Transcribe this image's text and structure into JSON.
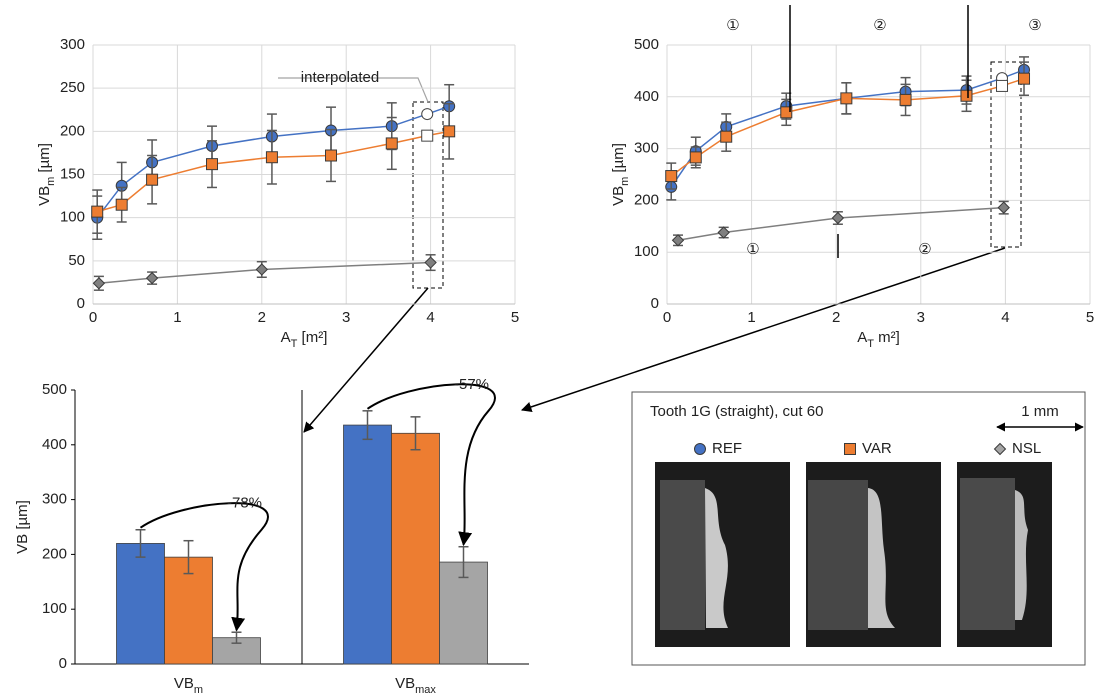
{
  "chart_data": [
    {
      "type": "line",
      "xlabel": {
        "main": "A",
        "sub": "T",
        "rest": " [m²]"
      },
      "ylabel": {
        "main": "VB",
        "sub": "m",
        "rest": " [µm]"
      },
      "xlim": [
        0,
        5
      ],
      "xticks": [
        0,
        1,
        2,
        3,
        4,
        5
      ],
      "ylim": [
        0,
        300
      ],
      "yticks": [
        0,
        50,
        100,
        150,
        200,
        250,
        300
      ],
      "grid": true,
      "annotation": "interpolated",
      "series": [
        {
          "color": "#4472c4",
          "marker": "circle",
          "open_points": [
            7
          ],
          "x": [
            0.05,
            0.34,
            0.7,
            1.41,
            2.12,
            2.82,
            3.54,
            3.96,
            4.22
          ],
          "values": [
            100,
            137,
            164,
            183,
            194,
            201,
            206,
            220,
            229
          ],
          "errors": [
            25,
            27,
            26,
            23,
            26,
            27,
            27,
            null,
            25
          ]
        },
        {
          "color": "#ed7d31",
          "marker": "square",
          "open_points": [
            7
          ],
          "x": [
            0.05,
            0.34,
            0.7,
            1.41,
            2.12,
            2.82,
            3.54,
            3.96,
            4.22
          ],
          "values": [
            107,
            115,
            144,
            162,
            170,
            172,
            186,
            195,
            200
          ],
          "errors": [
            25,
            20,
            28,
            27,
            31,
            30,
            30,
            null,
            32
          ]
        },
        {
          "color": "#7f7f7f",
          "marker": "diamond",
          "open_points": [],
          "x": [
            0.07,
            0.7,
            2.0,
            4.0
          ],
          "values": [
            24,
            30,
            40,
            48
          ],
          "errors": [
            8,
            7,
            9,
            9
          ]
        }
      ]
    },
    {
      "type": "line",
      "xlabel": {
        "main": "A",
        "sub": "T",
        "rest": " m²]"
      },
      "ylabel": {
        "main": "VB",
        "sub": "m",
        "rest": " [µm]"
      },
      "xlim": [
        0,
        5
      ],
      "xticks": [
        0,
        1,
        2,
        3,
        4,
        5
      ],
      "ylim": [
        0,
        500
      ],
      "yticks": [
        0,
        100,
        200,
        300,
        400,
        500
      ],
      "grid": true,
      "region_labels": [
        "①",
        "②",
        "③"
      ],
      "lower_region_labels": [
        "①",
        "②"
      ],
      "series": [
        {
          "color": "#4472c4",
          "marker": "circle",
          "open_points": [
            7
          ],
          "x": [
            0.05,
            0.34,
            0.7,
            1.41,
            2.12,
            2.82,
            3.54,
            3.96,
            4.22
          ],
          "values": [
            226,
            295,
            342,
            382,
            397,
            410,
            413,
            436,
            452
          ],
          "errors": [
            25,
            27,
            25,
            25,
            30,
            27,
            27,
            null,
            25
          ]
        },
        {
          "color": "#ed7d31",
          "marker": "square",
          "open_points": [
            7
          ],
          "x": [
            0.05,
            0.34,
            0.7,
            1.41,
            2.12,
            2.82,
            3.54,
            3.96,
            4.22
          ],
          "values": [
            247,
            283,
            323,
            370,
            397,
            394,
            402,
            421,
            435
          ],
          "errors": [
            25,
            20,
            28,
            25,
            30,
            30,
            30,
            null,
            32
          ]
        },
        {
          "color": "#7f7f7f",
          "marker": "diamond",
          "open_points": [],
          "x": [
            0.13,
            0.67,
            2.02,
            3.98
          ],
          "values": [
            123,
            138,
            166,
            186
          ],
          "errors": [
            10,
            10,
            12,
            12
          ]
        }
      ]
    },
    {
      "type": "bar",
      "ylabel": {
        "main": "VB",
        "rest": " [µm]"
      },
      "categories": [
        {
          "main": "VB",
          "sub": "m"
        },
        {
          "main": "VB",
          "sub": "max"
        }
      ],
      "ylim": [
        0,
        500
      ],
      "yticks": [
        0,
        100,
        200,
        300,
        400,
        500
      ],
      "grid": false,
      "annotations": [
        "-78%",
        "-57%"
      ],
      "series": [
        {
          "name": "REF",
          "color": "#4472c4",
          "values": [
            220,
            436
          ],
          "errors": [
            25,
            26
          ]
        },
        {
          "name": "VAR",
          "color": "#ed7d31",
          "values": [
            195,
            421
          ],
          "errors": [
            30,
            30
          ]
        },
        {
          "name": "NSL",
          "color": "#a5a5a5",
          "values": [
            48,
            186
          ],
          "errors": [
            10,
            28
          ]
        }
      ]
    }
  ],
  "panel": {
    "title": "Tooth 1G (straight), cut 60",
    "scale": "1 mm"
  }
}
